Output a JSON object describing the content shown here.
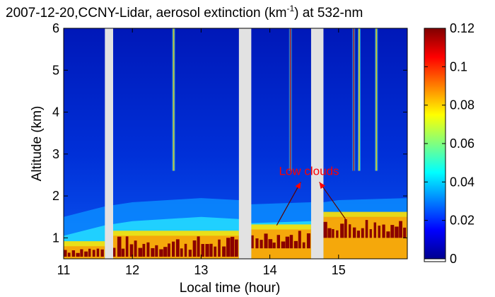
{
  "chart_data": {
    "type": "heatmap",
    "title": {
      "main": "2007-12-20,CCNY-Lidar, aerosol extinction (km",
      "superscript": "-1",
      "tail": ") at 532-nm"
    },
    "xlabel": "Local time (hour)",
    "ylabel": "Altitude (km)",
    "xlim": [
      11.0,
      16.0
    ],
    "ylim": [
      0.5,
      6.0
    ],
    "xticks": [
      11,
      12,
      13,
      14,
      15
    ],
    "xtick_labels": [
      "11",
      "12",
      "13",
      "14",
      "15"
    ],
    "yticks": [
      1,
      2,
      3,
      4,
      5,
      6
    ],
    "ytick_labels": [
      "1",
      "2",
      "3",
      "4",
      "5",
      "6"
    ],
    "colorbar": {
      "range": [
        0,
        0.12
      ],
      "ticks": [
        0,
        0.02,
        0.04,
        0.06,
        0.08,
        0.1,
        0.12
      ],
      "tick_labels": [
        "0",
        "0.02",
        "0.04",
        "0.06",
        "0.08",
        "0.1",
        "0.12"
      ],
      "colormap": "jet"
    },
    "data_gaps_hours": [
      [
        11.6,
        11.72
      ],
      [
        13.55,
        13.73
      ],
      [
        14.6,
        14.78
      ]
    ],
    "boundary_layer_top_km": [
      [
        11.0,
        1.5
      ],
      [
        11.6,
        1.75
      ],
      [
        12.0,
        1.85
      ],
      [
        13.0,
        1.95
      ],
      [
        13.55,
        1.9
      ],
      [
        13.73,
        1.8
      ],
      [
        14.6,
        1.85
      ],
      [
        14.78,
        1.85
      ],
      [
        15.0,
        1.9
      ],
      [
        16.0,
        1.95
      ]
    ],
    "low_cloud_segments": [
      {
        "x": [
          11.0,
          11.6
        ],
        "base_km": 0.55,
        "top_km": 0.8
      },
      {
        "x": [
          11.72,
          13.55
        ],
        "base_km": 0.55,
        "top_km": 1.05
      },
      {
        "x": [
          13.73,
          14.6
        ],
        "base_km": 0.75,
        "top_km": 1.2
      },
      {
        "x": [
          14.78,
          16.0
        ],
        "base_km": 1.0,
        "top_km": 1.5
      }
    ],
    "cloud_streaks_hours": [
      12.6,
      14.3,
      15.22,
      15.3,
      15.55
    ],
    "annotations": [
      {
        "text": "Low clouds",
        "color": "#ff0000",
        "x": 14.57,
        "y": 2.5,
        "arrows_to": [
          [
            14.1,
            1.3
          ],
          [
            15.1,
            1.45
          ]
        ]
      }
    ]
  }
}
